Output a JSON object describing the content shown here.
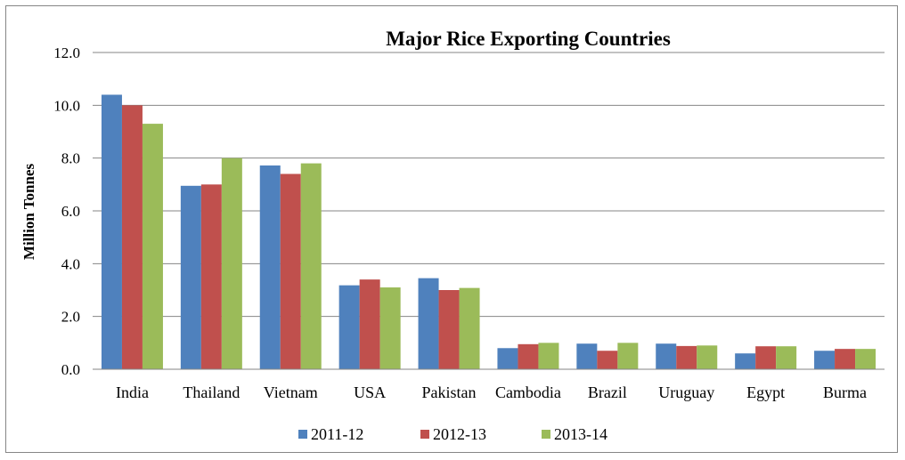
{
  "chart_data": {
    "type": "bar",
    "title": "Major Rice Exporting Countries",
    "xlabel": "",
    "ylabel": "Million Tonnes",
    "ylim": [
      0,
      12
    ],
    "yticks": [
      "0.0",
      "2.0",
      "4.0",
      "6.0",
      "8.0",
      "10.0",
      "12.0"
    ],
    "grid": true,
    "legend_position": "bottom",
    "categories": [
      "India",
      "Thailand",
      "Vietnam",
      "USA",
      "Pakistan",
      "Cambodia",
      "Brazil",
      "Uruguay",
      "Egypt",
      "Burma"
    ],
    "series": [
      {
        "name": "2011-12",
        "color": "#4F81BD",
        "values": [
          10.4,
          6.95,
          7.72,
          3.18,
          3.45,
          0.8,
          0.97,
          0.97,
          0.6,
          0.7
        ]
      },
      {
        "name": "2012-13",
        "color": "#C0504D",
        "values": [
          10.0,
          7.0,
          7.4,
          3.4,
          3.0,
          0.95,
          0.7,
          0.88,
          0.87,
          0.77
        ]
      },
      {
        "name": "2013-14",
        "color": "#9BBB59",
        "values": [
          9.3,
          8.0,
          7.8,
          3.1,
          3.08,
          1.0,
          1.0,
          0.9,
          0.87,
          0.77
        ]
      }
    ]
  }
}
